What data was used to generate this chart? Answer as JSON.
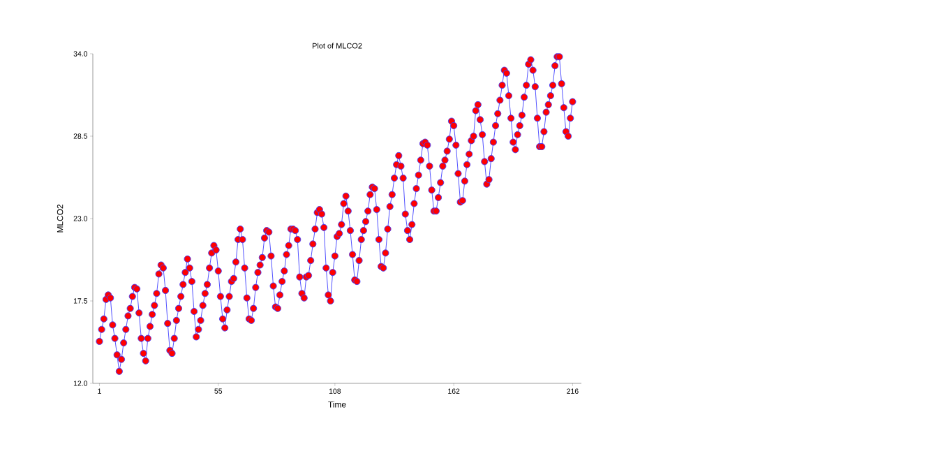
{
  "chart_data": {
    "type": "line",
    "title": "Plot of MLCO2",
    "xlabel": "Time",
    "ylabel": "MLCO2",
    "x": [
      1,
      2,
      3,
      4,
      5,
      6,
      7,
      8,
      9,
      10,
      11,
      12,
      13,
      14,
      15,
      16,
      17,
      18,
      19,
      20,
      21,
      22,
      23,
      24,
      25,
      26,
      27,
      28,
      29,
      30,
      31,
      32,
      33,
      34,
      35,
      36,
      37,
      38,
      39,
      40,
      41,
      42,
      43,
      44,
      45,
      46,
      47,
      48,
      49,
      50,
      51,
      52,
      53,
      54,
      55,
      56,
      57,
      58,
      59,
      60,
      61,
      62,
      63,
      64,
      65,
      66,
      67,
      68,
      69,
      70,
      71,
      72,
      73,
      74,
      75,
      76,
      77,
      78,
      79,
      80,
      81,
      82,
      83,
      84,
      85,
      86,
      87,
      88,
      89,
      90,
      91,
      92,
      93,
      94,
      95,
      96,
      97,
      98,
      99,
      100,
      101,
      102,
      103,
      104,
      105,
      106,
      107,
      108,
      109,
      110,
      111,
      112,
      113,
      114,
      115,
      116,
      117,
      118,
      119,
      120,
      121,
      122,
      123,
      124,
      125,
      126,
      127,
      128,
      129,
      130,
      131,
      132,
      133,
      134,
      135,
      136,
      137,
      138,
      139,
      140,
      141,
      142,
      143,
      144,
      145,
      146,
      147,
      148,
      149,
      150,
      151,
      152,
      153,
      154,
      155,
      156,
      157,
      158,
      159,
      160,
      161,
      162,
      163,
      164,
      165,
      166,
      167,
      168,
      169,
      170,
      171,
      172,
      173,
      174,
      175,
      176,
      177,
      178,
      179,
      180,
      181,
      182,
      183,
      184,
      185,
      186,
      187,
      188,
      189,
      190,
      191,
      192,
      193,
      194,
      195,
      196,
      197,
      198,
      199,
      200,
      201,
      202,
      203,
      204,
      205,
      206,
      207,
      208,
      209,
      210,
      211,
      212,
      213,
      214,
      215,
      216
    ],
    "series": [
      {
        "color": "#ff0000",
        "values": [
          14.8,
          15.6,
          16.3,
          17.6,
          17.9,
          17.7,
          15.9,
          15.0,
          13.9,
          12.8,
          13.6,
          14.7,
          15.6,
          16.5,
          17.0,
          17.8,
          18.4,
          18.3,
          16.7,
          15.0,
          14.0,
          13.5,
          15.0,
          15.8,
          16.6,
          17.2,
          18.0,
          19.3,
          19.9,
          19.7,
          18.2,
          16.0,
          14.2,
          14.0,
          15.0,
          16.2,
          17.0,
          17.8,
          18.6,
          19.4,
          20.3,
          19.7,
          18.8,
          16.8,
          15.1,
          15.6,
          16.2,
          17.2,
          18.0,
          18.6,
          19.7,
          20.7,
          21.2,
          20.9,
          19.5,
          17.8,
          16.3,
          15.7,
          16.9,
          17.8,
          18.8,
          19.0,
          20.1,
          21.6,
          22.3,
          21.6,
          19.7,
          17.7,
          16.3,
          16.2,
          17.0,
          18.4,
          19.4,
          19.9,
          20.4,
          21.7,
          22.2,
          22.1,
          20.5,
          18.5,
          17.1,
          17.0,
          17.9,
          18.8,
          19.5,
          20.6,
          21.2,
          22.3,
          22.3,
          22.2,
          21.6,
          19.1,
          18.0,
          17.7,
          19.1,
          19.2,
          20.2,
          21.3,
          22.3,
          23.4,
          23.6,
          23.3,
          22.4,
          19.7,
          17.9,
          17.5,
          19.4,
          20.5,
          21.8,
          22.0,
          22.6,
          24.0,
          24.5,
          23.5,
          22.2,
          20.6,
          18.9,
          18.8,
          20.2,
          21.6,
          22.2,
          22.8,
          23.5,
          24.6,
          25.1,
          25.0,
          23.6,
          21.6,
          19.8,
          19.7,
          20.7,
          22.3,
          23.8,
          24.6,
          25.7,
          26.6,
          27.2,
          26.5,
          25.7,
          23.3,
          22.2,
          21.6,
          22.6,
          24.0,
          25.0,
          25.9,
          26.9,
          28.0,
          28.1,
          27.9,
          26.5,
          24.9,
          23.5,
          23.5,
          24.4,
          25.4,
          26.5,
          26.9,
          27.5,
          28.3,
          29.5,
          29.2,
          27.9,
          26.0,
          24.1,
          24.2,
          25.5,
          26.6,
          27.3,
          28.2,
          28.5,
          30.2,
          30.6,
          29.6,
          28.6,
          26.8,
          25.3,
          25.6,
          27.0,
          28.1,
          29.2,
          30.0,
          30.9,
          31.9,
          32.9,
          32.7,
          31.2,
          29.7,
          28.1,
          27.6,
          28.6,
          29.2,
          29.9,
          31.1,
          31.9,
          33.3,
          33.6,
          32.9,
          31.8,
          29.7,
          27.8,
          27.8,
          28.8,
          30.1,
          30.6,
          31.2,
          31.9,
          33.2,
          33.8,
          33.8,
          32.0,
          30.4,
          28.8,
          28.5,
          29.7,
          30.8
        ]
      }
    ],
    "xlim": [
      -2,
      220
    ],
    "ylim": [
      12,
      34
    ],
    "xticks": [
      1,
      55,
      108,
      162,
      216
    ],
    "yticks": [
      {
        "value": 12,
        "label": "12.0"
      },
      {
        "value": 17.5,
        "label": "17.5"
      },
      {
        "value": 23,
        "label": "23.0"
      },
      {
        "value": 28.5,
        "label": "28.5"
      },
      {
        "value": 34,
        "label": "34.0"
      }
    ],
    "marker": "circle",
    "line_style": "solid",
    "grid": false
  }
}
